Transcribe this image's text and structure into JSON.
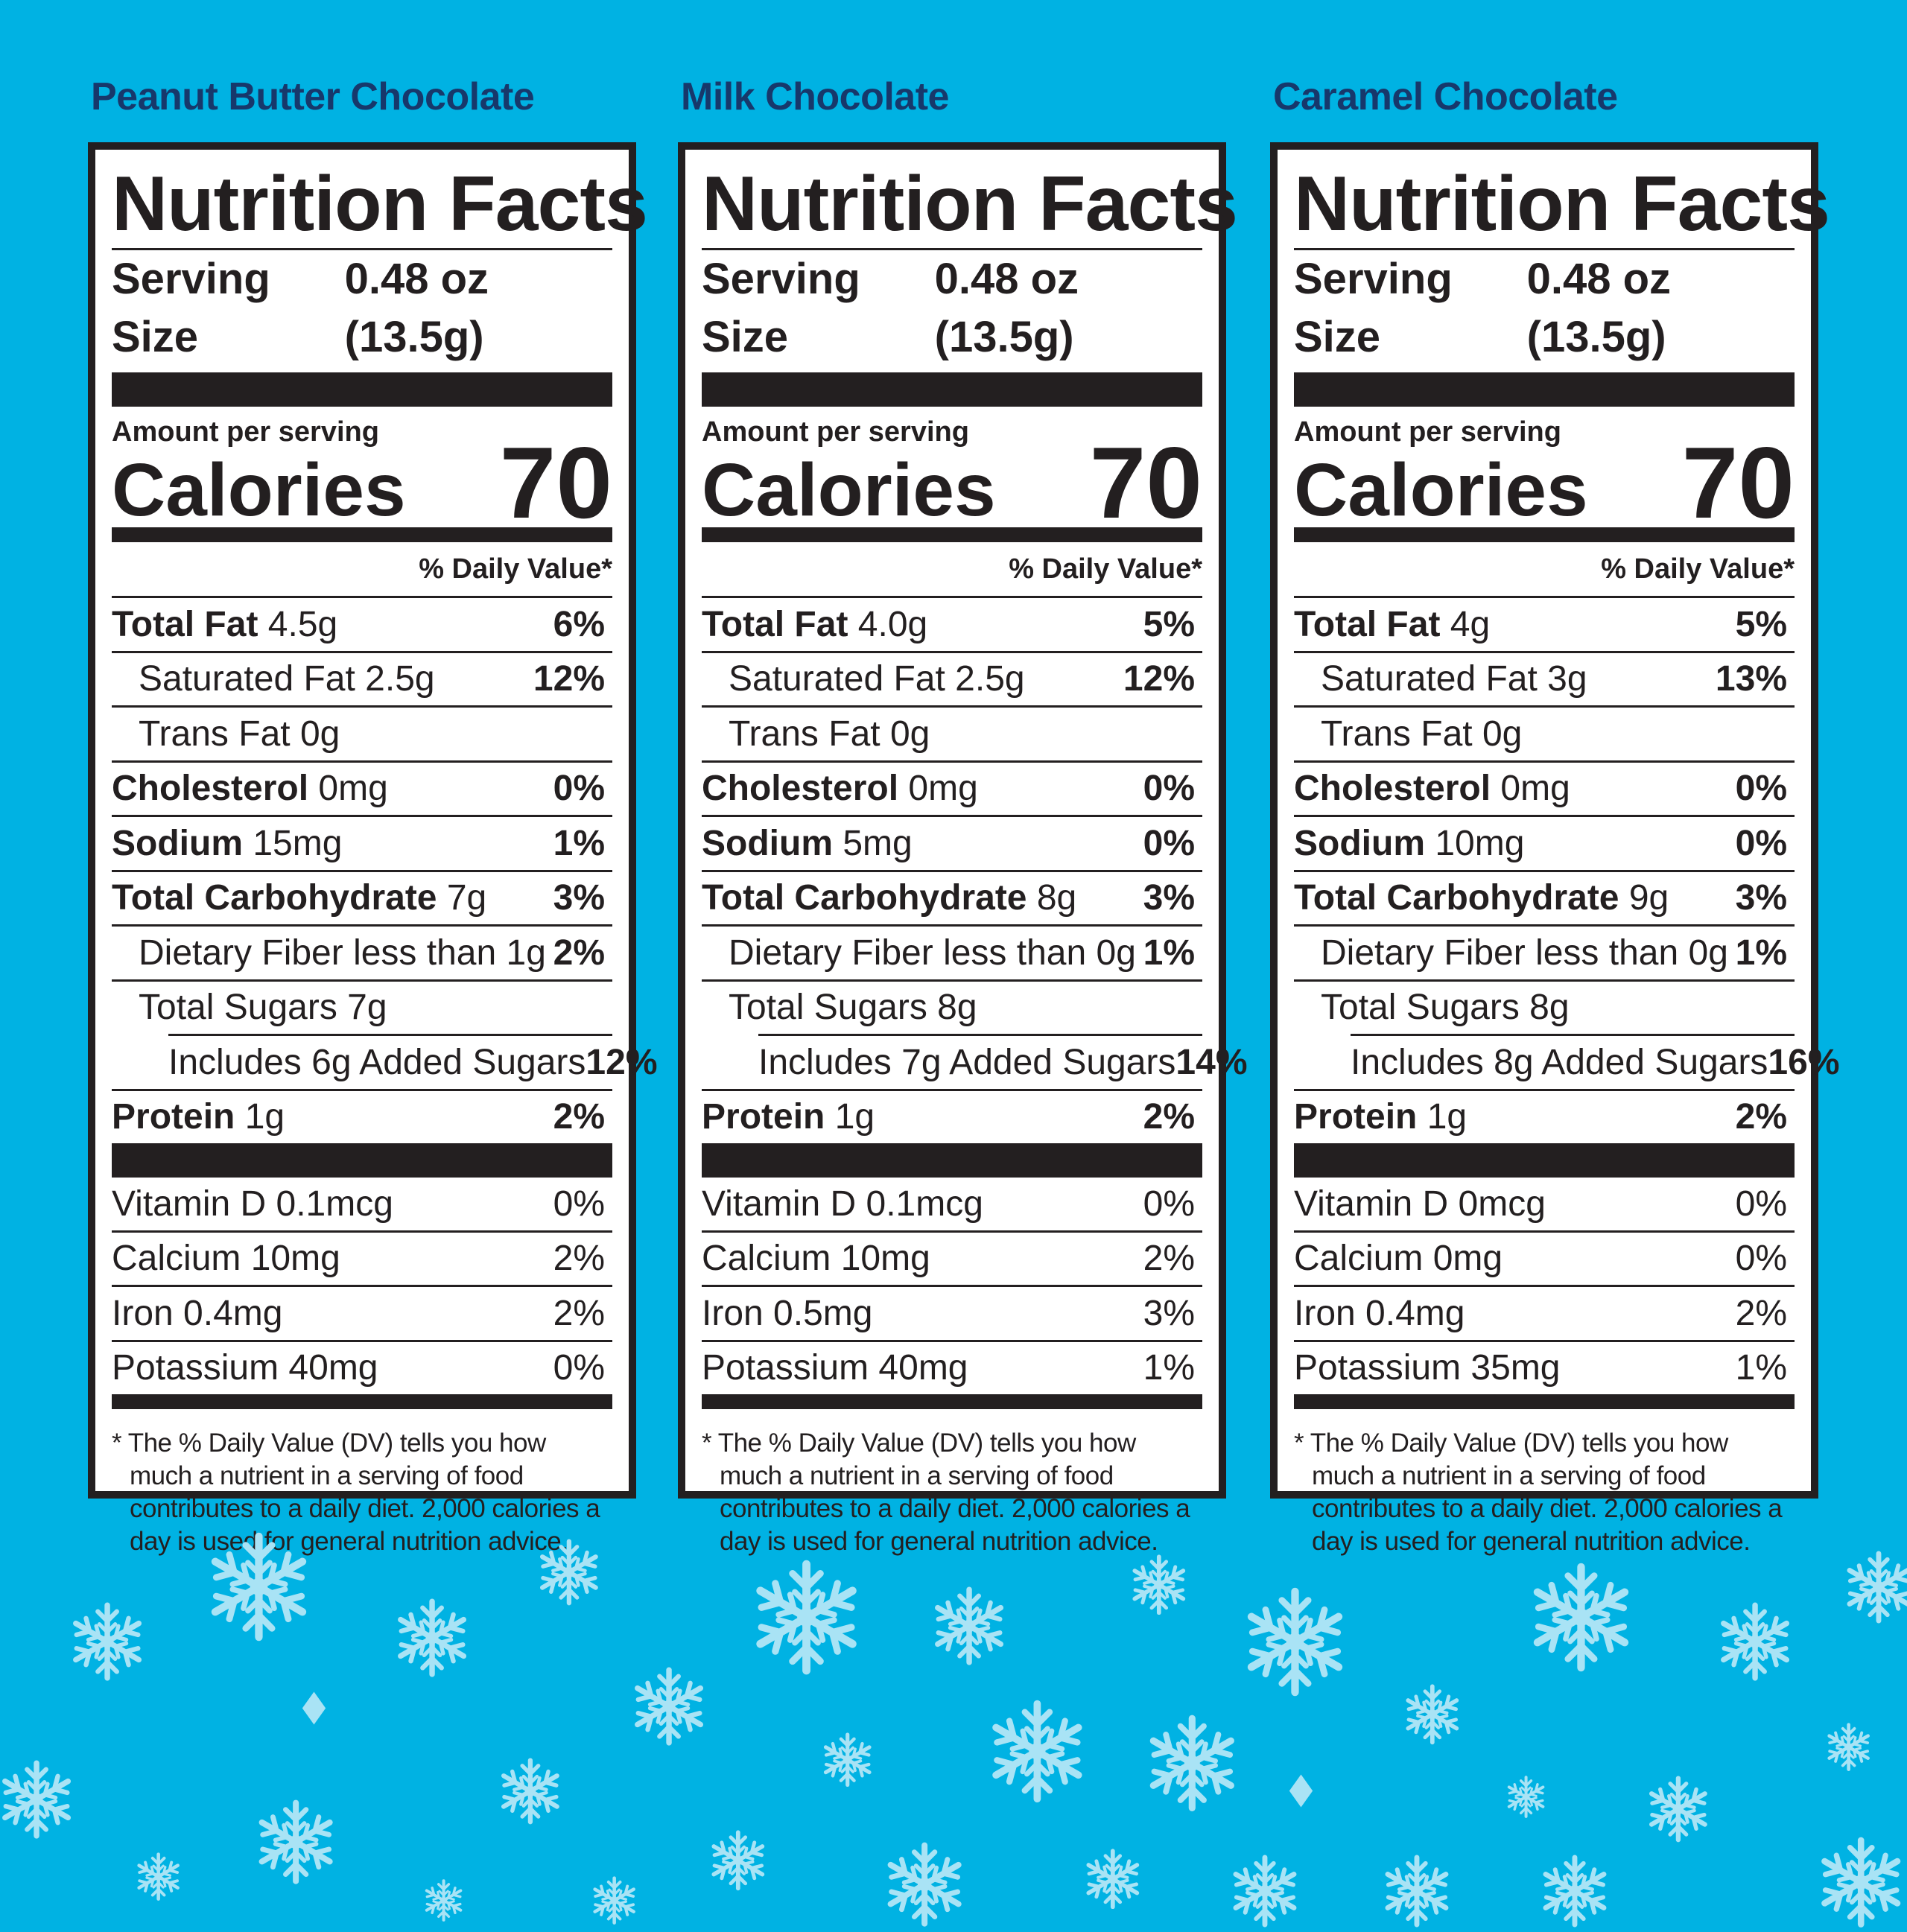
{
  "colors": {
    "background": "#00b2e3",
    "flavor_title": "#17386b",
    "label_ink": "#231f20",
    "snowflake": "#a9e3f5"
  },
  "decoration_icon": "snowflake-icon",
  "panels": [
    {
      "flavor": "Peanut Butter Chocolate",
      "heading": "Nutrition Facts",
      "serving_label": "Serving Size",
      "serving_size": "0.48 oz (13.5g)",
      "amount_per_serving": "Amount per serving",
      "calories_label": "Calories",
      "calories": "70",
      "dv_header": "% Daily Value*",
      "nutrients": [
        {
          "name": "Total Fat",
          "amount": "4.5g",
          "dv": "6%",
          "bold": true,
          "indent": 0
        },
        {
          "name": "Saturated Fat 2.5g",
          "amount": "",
          "dv": "12%",
          "bold": false,
          "indent": 1
        },
        {
          "name": "Trans Fat 0g",
          "amount": "",
          "dv": "",
          "bold": false,
          "indent": 1
        },
        {
          "name": "Cholesterol",
          "amount": "0mg",
          "dv": "0%",
          "bold": true,
          "indent": 0
        },
        {
          "name": "Sodium",
          "amount": "15mg",
          "dv": "1%",
          "bold": true,
          "indent": 0
        },
        {
          "name": "Total Carbohydrate",
          "amount": "7g",
          "dv": "3%",
          "bold": true,
          "indent": 0
        },
        {
          "name": "Dietary Fiber less than 1g",
          "amount": "",
          "dv": "2%",
          "bold": false,
          "indent": 1
        },
        {
          "name": "Total Sugars 7g",
          "amount": "",
          "dv": "",
          "bold": false,
          "indent": 1
        },
        {
          "name": "Includes 6g Added Sugars",
          "amount": "",
          "dv": "12%",
          "bold": false,
          "indent": 2
        },
        {
          "name": "Protein",
          "amount": "1g",
          "dv": "2%",
          "bold": true,
          "indent": 0
        }
      ],
      "vitamins": [
        {
          "name": "Vitamin D 0.1mcg",
          "dv": "0%"
        },
        {
          "name": "Calcium 10mg",
          "dv": "2%"
        },
        {
          "name": "Iron 0.4mg",
          "dv": "2%"
        },
        {
          "name": "Potassium 40mg",
          "dv": "0%"
        }
      ],
      "footnote": "*  The % Daily Value (DV) tells you how much a nutrient in a serving of food contributes to a daily diet. 2,000 calories a day is used for general nutrition advice."
    },
    {
      "flavor": "Milk Chocolate",
      "heading": "Nutrition Facts",
      "serving_label": "Serving Size",
      "serving_size": "0.48 oz (13.5g)",
      "amount_per_serving": "Amount per serving",
      "calories_label": "Calories",
      "calories": "70",
      "dv_header": "% Daily Value*",
      "nutrients": [
        {
          "name": "Total Fat",
          "amount": "4.0g",
          "dv": "5%",
          "bold": true,
          "indent": 0
        },
        {
          "name": "Saturated Fat 2.5g",
          "amount": "",
          "dv": "12%",
          "bold": false,
          "indent": 1
        },
        {
          "name": "Trans Fat 0g",
          "amount": "",
          "dv": "",
          "bold": false,
          "indent": 1
        },
        {
          "name": "Cholesterol",
          "amount": "0mg",
          "dv": "0%",
          "bold": true,
          "indent": 0
        },
        {
          "name": "Sodium",
          "amount": "5mg",
          "dv": "0%",
          "bold": true,
          "indent": 0
        },
        {
          "name": "Total Carbohydrate",
          "amount": "8g",
          "dv": "3%",
          "bold": true,
          "indent": 0
        },
        {
          "name": "Dietary Fiber less than 0g",
          "amount": "",
          "dv": "1%",
          "bold": false,
          "indent": 1
        },
        {
          "name": "Total Sugars 8g",
          "amount": "",
          "dv": "",
          "bold": false,
          "indent": 1
        },
        {
          "name": "Includes 7g Added Sugars",
          "amount": "",
          "dv": "14%",
          "bold": false,
          "indent": 2
        },
        {
          "name": "Protein",
          "amount": "1g",
          "dv": "2%",
          "bold": true,
          "indent": 0
        }
      ],
      "vitamins": [
        {
          "name": "Vitamin D 0.1mcg",
          "dv": "0%"
        },
        {
          "name": "Calcium 10mg",
          "dv": "2%"
        },
        {
          "name": "Iron 0.5mg",
          "dv": "3%"
        },
        {
          "name": "Potassium 40mg",
          "dv": "1%"
        }
      ],
      "footnote": "*  The % Daily Value (DV) tells you how much a nutrient in a serving of food contributes to a daily diet. 2,000 calories a day is used for general nutrition advice."
    },
    {
      "flavor": "Caramel Chocolate",
      "heading": "Nutrition Facts",
      "serving_label": "Serving Size",
      "serving_size": "0.48 oz (13.5g)",
      "amount_per_serving": "Amount per serving",
      "calories_label": "Calories",
      "calories": "70",
      "dv_header": "% Daily Value*",
      "nutrients": [
        {
          "name": "Total Fat",
          "amount": "4g",
          "dv": "5%",
          "bold": true,
          "indent": 0
        },
        {
          "name": "Saturated Fat 3g",
          "amount": "",
          "dv": "13%",
          "bold": false,
          "indent": 1
        },
        {
          "name": "Trans Fat 0g",
          "amount": "",
          "dv": "",
          "bold": false,
          "indent": 1
        },
        {
          "name": "Cholesterol",
          "amount": "0mg",
          "dv": "0%",
          "bold": true,
          "indent": 0
        },
        {
          "name": "Sodium",
          "amount": "10mg",
          "dv": "0%",
          "bold": true,
          "indent": 0
        },
        {
          "name": "Total Carbohydrate",
          "amount": "9g",
          "dv": "3%",
          "bold": true,
          "indent": 0
        },
        {
          "name": "Dietary Fiber less than 0g",
          "amount": "",
          "dv": "1%",
          "bold": false,
          "indent": 1
        },
        {
          "name": "Total Sugars 8g",
          "amount": "",
          "dv": "",
          "bold": false,
          "indent": 1
        },
        {
          "name": "Includes 8g Added Sugars",
          "amount": "",
          "dv": "16%",
          "bold": false,
          "indent": 2
        },
        {
          "name": "Protein",
          "amount": "1g",
          "dv": "2%",
          "bold": true,
          "indent": 0
        }
      ],
      "vitamins": [
        {
          "name": "Vitamin D 0mcg",
          "dv": "0%"
        },
        {
          "name": "Calcium 0mg",
          "dv": "0%"
        },
        {
          "name": "Iron 0.4mg",
          "dv": "2%"
        },
        {
          "name": "Potassium 35mg",
          "dv": "1%"
        }
      ],
      "footnote": "*  The % Daily Value (DV) tells you how much a nutrient in a serving of food contributes to a daily diet. 2,000 calories a day is used for general nutrition advice."
    }
  ]
}
